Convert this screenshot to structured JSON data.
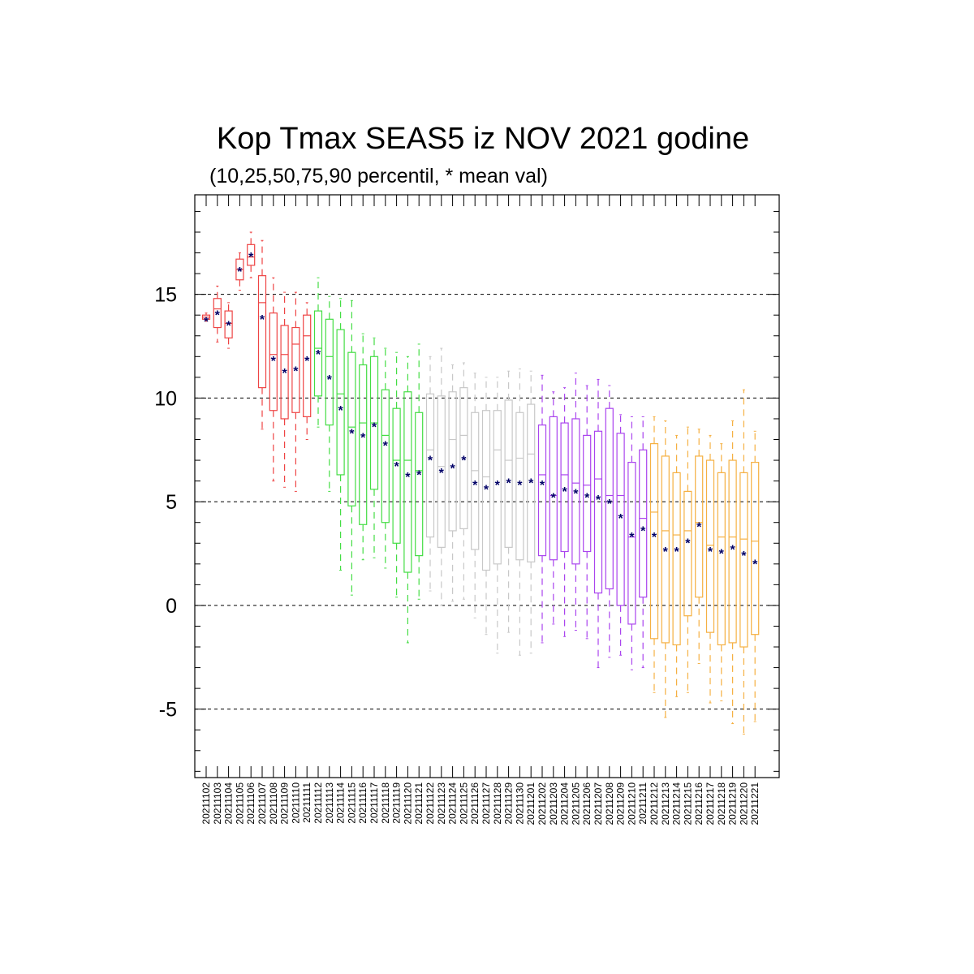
{
  "chart_data": {
    "type": "box",
    "title": "Kop Tmax SEAS5 iz NOV 2021 godine",
    "subtitle": "(10,25,50,75,90 percentil, * mean val)",
    "xlabel": "",
    "ylabel": "",
    "ylim": [
      -8.3,
      19.8
    ],
    "yticks": [
      -5,
      0,
      5,
      10,
      15
    ],
    "grid": "horizontal dashed at major ticks",
    "legend": "none",
    "categories": [
      "20211102",
      "20211103",
      "20211104",
      "20211105",
      "20211106",
      "20211107",
      "20211108",
      "20211109",
      "20211110",
      "20211111",
      "20211112",
      "20211113",
      "20211114",
      "20211115",
      "20211116",
      "20211117",
      "20211118",
      "20211119",
      "20211120",
      "20211121",
      "20211122",
      "20211123",
      "20211124",
      "20211125",
      "20211126",
      "20211127",
      "20211128",
      "20211129",
      "20211130",
      "20211201",
      "20211202",
      "20211203",
      "20211204",
      "20211205",
      "20211206",
      "20211207",
      "20211208",
      "20211209",
      "20211210",
      "20211211",
      "20211212",
      "20211213",
      "20211214",
      "20211215",
      "20211216",
      "20211217",
      "20211218",
      "20211219",
      "20211220",
      "20211221"
    ],
    "colors": [
      "#ee4444",
      "#ee4444",
      "#ee4444",
      "#ee4444",
      "#ee4444",
      "#ee4444",
      "#ee4444",
      "#ee4444",
      "#ee4444",
      "#ee4444",
      "#44dd44",
      "#44dd44",
      "#44dd44",
      "#44dd44",
      "#44dd44",
      "#44dd44",
      "#44dd44",
      "#44dd44",
      "#44dd44",
      "#44dd44",
      "#c8c8c8",
      "#c8c8c8",
      "#c8c8c8",
      "#c8c8c8",
      "#c8c8c8",
      "#c8c8c8",
      "#c8c8c8",
      "#c8c8c8",
      "#c8c8c8",
      "#c8c8c8",
      "#aa44ee",
      "#aa44ee",
      "#aa44ee",
      "#aa44ee",
      "#aa44ee",
      "#aa44ee",
      "#aa44ee",
      "#aa44ee",
      "#aa44ee",
      "#aa44ee",
      "#f5b042",
      "#f5b042",
      "#f5b042",
      "#f5b042",
      "#f5b042",
      "#f5b042",
      "#f5b042",
      "#f5b042",
      "#f5b042",
      "#f5b042"
    ],
    "mean_color": "#000066",
    "p10": [
      13.7,
      12.7,
      12.4,
      15.2,
      15.8,
      8.5,
      6.0,
      5.7,
      5.5,
      8.0,
      8.6,
      5.5,
      1.7,
      0.5,
      2.2,
      2.3,
      1.8,
      0.4,
      -1.8,
      0.3,
      0.7,
      0.0,
      0.2,
      0.3,
      -0.6,
      -1.4,
      -2.3,
      -1.3,
      -2.4,
      -2.3,
      -1.8,
      -0.9,
      -1.5,
      -1.2,
      -1.6,
      -3.0,
      -2.5,
      -2.4,
      -3.1,
      -3.0,
      -4.2,
      -5.4,
      -4.4,
      -4.2,
      -2.8,
      -4.7,
      -4.6,
      -5.7,
      -6.2,
      -5.6
    ],
    "p25": [
      13.8,
      13.4,
      12.9,
      15.7,
      16.4,
      10.5,
      9.4,
      9.0,
      9.3,
      9.1,
      10.1,
      8.7,
      6.3,
      4.8,
      3.9,
      5.6,
      4.0,
      3.0,
      1.6,
      2.4,
      3.3,
      2.8,
      3.6,
      3.7,
      2.7,
      1.7,
      2.0,
      2.8,
      2.2,
      2.1,
      2.4,
      2.2,
      2.6,
      2.0,
      2.6,
      0.6,
      0.8,
      0.0,
      -0.9,
      0.4,
      -1.6,
      -1.8,
      -1.9,
      -0.5,
      0.4,
      -1.3,
      -1.9,
      -1.8,
      -2.0,
      -1.4
    ],
    "p50": [
      13.9,
      14.3,
      13.6,
      16.2,
      16.8,
      14.6,
      12.1,
      12.1,
      12.6,
      13.0,
      12.4,
      12.0,
      10.2,
      8.6,
      8.8,
      8.8,
      8.2,
      7.0,
      7.0,
      6.5,
      7.5,
      6.7,
      8.0,
      8.2,
      6.5,
      6.2,
      7.5,
      7.0,
      7.1,
      7.3,
      6.3,
      5.3,
      6.3,
      5.9,
      5.8,
      6.1,
      5.3,
      5.3,
      3.3,
      4.2,
      4.5,
      3.6,
      3.4,
      3.6,
      4.0,
      2.9,
      3.3,
      3.3,
      3.2,
      3.1
    ],
    "p75": [
      14.0,
      14.8,
      14.2,
      16.7,
      17.4,
      15.9,
      14.1,
      13.5,
      13.4,
      14.0,
      14.2,
      13.8,
      13.3,
      12.2,
      11.6,
      12.0,
      10.4,
      9.5,
      10.3,
      9.3,
      10.2,
      10.1,
      10.3,
      10.5,
      9.3,
      9.4,
      9.4,
      9.9,
      9.3,
      9.7,
      8.7,
      9.1,
      8.8,
      9.0,
      8.2,
      8.4,
      9.5,
      8.3,
      6.9,
      7.5,
      7.8,
      7.2,
      6.4,
      5.5,
      7.2,
      7.0,
      6.4,
      7.0,
      6.4,
      6.9
    ],
    "p90": [
      14.1,
      15.4,
      14.6,
      17.0,
      18.0,
      17.6,
      15.8,
      15.1,
      15.1,
      14.6,
      15.8,
      14.9,
      14.8,
      14.7,
      13.1,
      12.9,
      12.4,
      12.2,
      12.0,
      12.6,
      12.0,
      12.4,
      11.6,
      11.7,
      11.2,
      11.0,
      11.0,
      11.3,
      11.4,
      11.3,
      11.1,
      10.3,
      10.5,
      11.2,
      10.6,
      10.9,
      10.6,
      9.2,
      9.1,
      9.1,
      9.1,
      8.9,
      8.2,
      8.6,
      8.5,
      8.2,
      7.8,
      8.9,
      10.4,
      8.4
    ],
    "mean": [
      13.8,
      14.1,
      13.6,
      16.2,
      16.9,
      13.9,
      11.9,
      11.3,
      11.4,
      11.9,
      12.2,
      11.0,
      9.5,
      8.4,
      8.2,
      8.7,
      7.8,
      6.8,
      6.3,
      6.4,
      7.1,
      6.5,
      6.7,
      7.1,
      5.9,
      5.7,
      5.9,
      6.0,
      5.9,
      6.0,
      5.9,
      5.3,
      5.6,
      5.5,
      5.3,
      5.2,
      5.0,
      4.3,
      3.4,
      3.7,
      3.4,
      2.7,
      2.7,
      3.1,
      3.9,
      2.7,
      2.6,
      2.8,
      2.5,
      2.1
    ]
  }
}
